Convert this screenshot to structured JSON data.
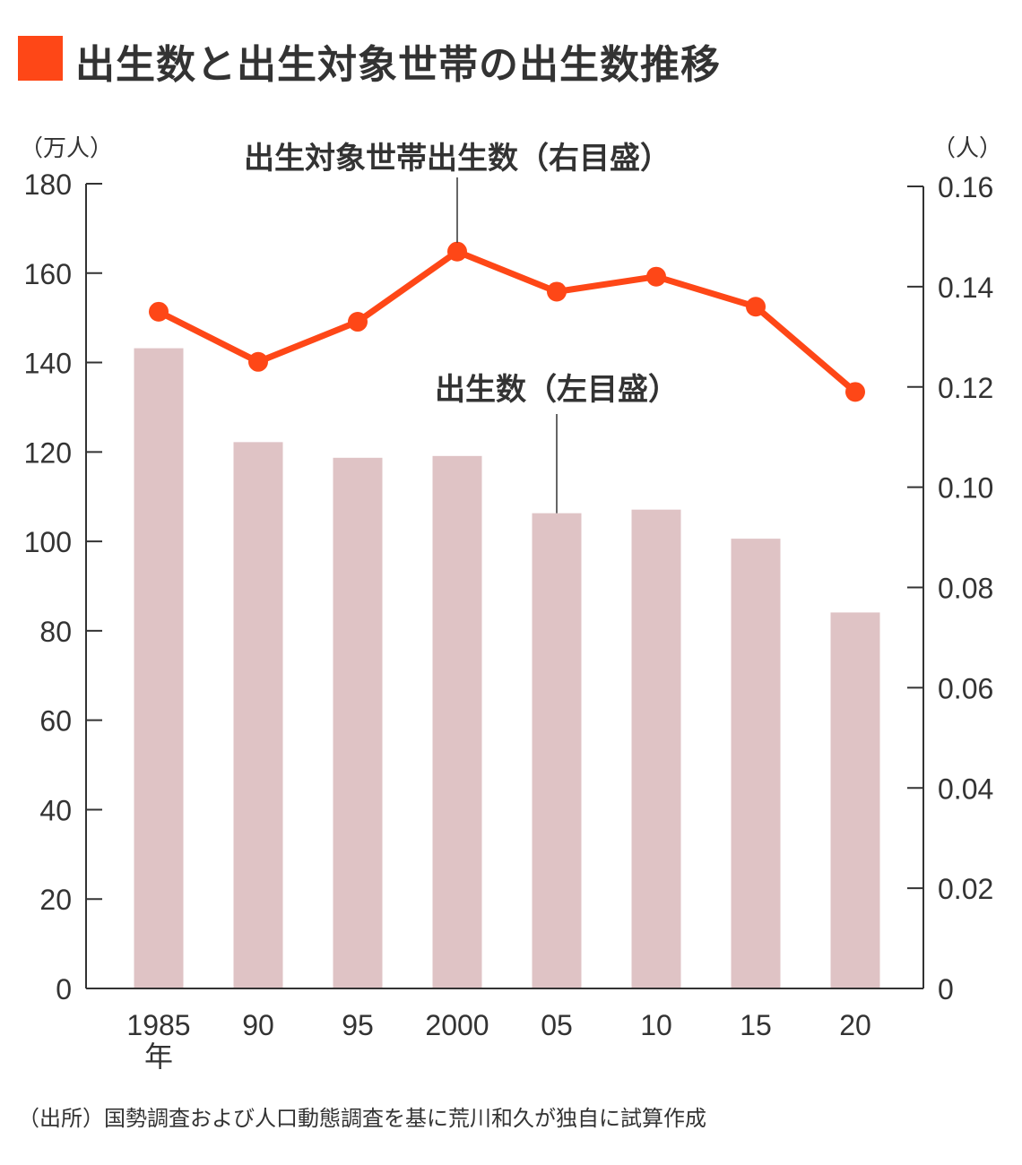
{
  "chart_data": {
    "type": "bar+line",
    "title": "出生数と出生対象世帯の出生数推移",
    "categories": [
      "1985",
      "90",
      "95",
      "2000",
      "05",
      "10",
      "15",
      "20"
    ],
    "x_unit_label": "年",
    "series": [
      {
        "name": "出生数（左目盛）",
        "type": "bar",
        "axis": "left",
        "color": "#dfc3c5",
        "values": [
          143.2,
          122.2,
          118.7,
          119.1,
          106.3,
          107.1,
          100.6,
          84.1
        ]
      },
      {
        "name": "出生対象世帯出生数（右目盛）",
        "type": "line",
        "axis": "right",
        "color": "#fe4717",
        "values": [
          0.135,
          0.125,
          0.133,
          0.147,
          0.139,
          0.142,
          0.136,
          0.119
        ]
      }
    ],
    "left_axis": {
      "unit": "（万人）",
      "ylim": [
        0,
        180
      ],
      "ticks": [
        "0",
        "20",
        "40",
        "60",
        "80",
        "100",
        "120",
        "140",
        "160",
        "180"
      ]
    },
    "right_axis": {
      "unit": "（人）",
      "ylim": [
        0,
        0.16
      ],
      "ticks": [
        "0",
        "0.02",
        "0.04",
        "0.06",
        "0.08",
        "0.10",
        "0.12",
        "0.14",
        "0.16"
      ]
    },
    "grid": false
  },
  "source": "（出所）国勢調査および人口動態調査を基に荒川和久が独自に試算作成",
  "colors": {
    "accent": "#fe4717",
    "bar": "#dfc3c5",
    "axis": "#333333"
  }
}
